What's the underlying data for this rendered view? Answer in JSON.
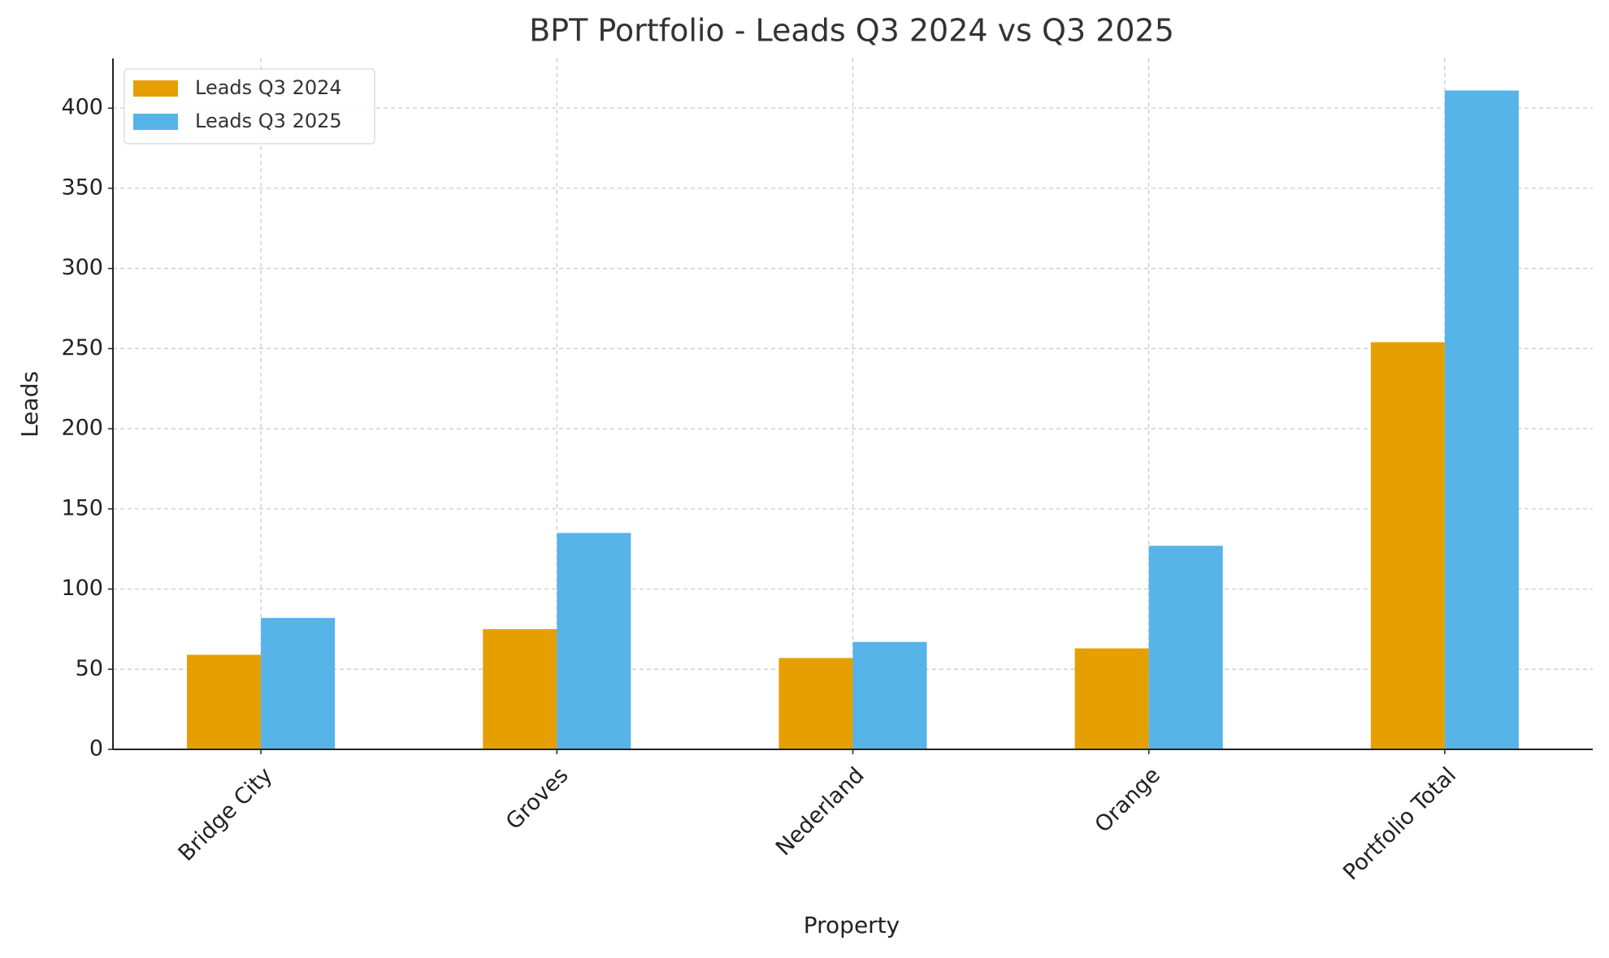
{
  "chart_data": {
    "type": "bar",
    "title": "BPT Portfolio - Leads Q3 2024 vs Q3 2025",
    "x_label": "Property",
    "y_label": "Leads",
    "categories": [
      "Bridge City",
      "Groves",
      "Nederland",
      "Orange",
      "Portfolio Total"
    ],
    "series": [
      {
        "name": "Leads Q3 2024",
        "color": "#e69f00",
        "values": [
          59,
          75,
          57,
          63,
          254
        ]
      },
      {
        "name": "Leads Q3 2025",
        "color": "#56b4e9",
        "values": [
          82,
          135,
          67,
          127,
          411
        ]
      }
    ],
    "ylim": [
      0,
      431
    ],
    "yticks": [
      0,
      50,
      100,
      150,
      200,
      250,
      300,
      350,
      400
    ],
    "grid": true,
    "legend": "upper left"
  }
}
